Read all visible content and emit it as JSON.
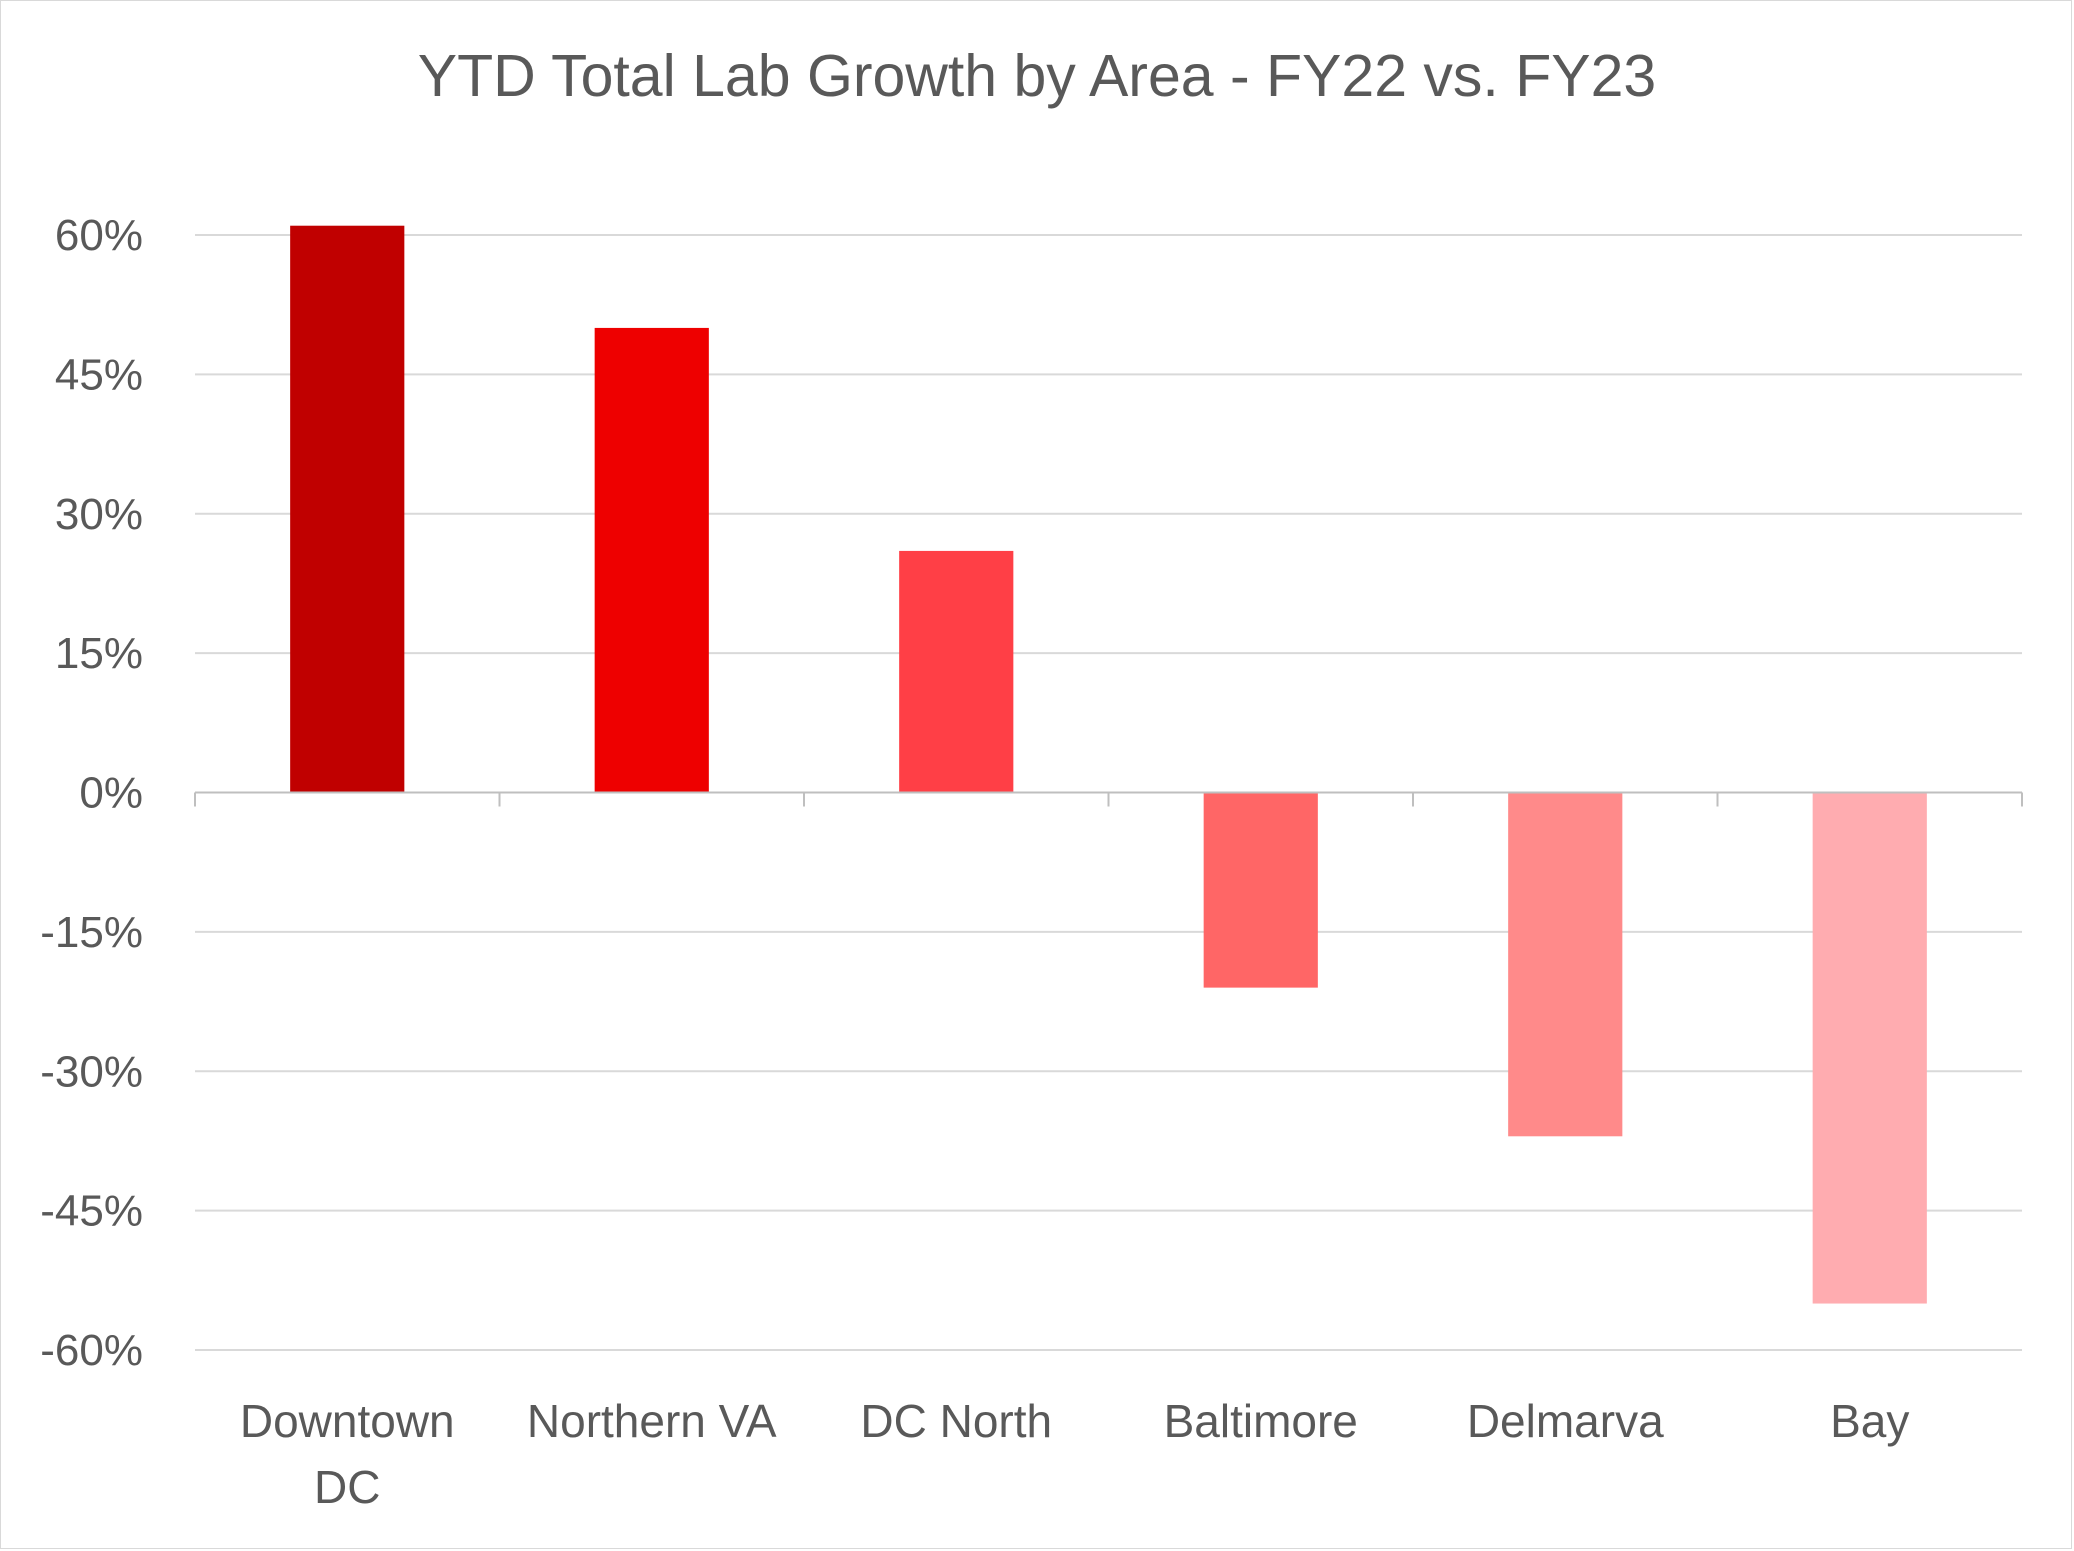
{
  "chart_data": {
    "type": "bar",
    "title": "YTD Total Lab Growth by Area - FY22 vs. FY23",
    "xlabel": "",
    "ylabel": "",
    "categories": [
      [
        "Downtown",
        "DC"
      ],
      [
        "Northern VA"
      ],
      [
        "DC North"
      ],
      [
        "Baltimore"
      ],
      [
        "Delmarva"
      ],
      [
        "Bay"
      ]
    ],
    "values": [
      61,
      50,
      26,
      -21,
      -37,
      -55
    ],
    "value_unit": "%",
    "colors": [
      "#C00000",
      "#EE0000",
      "#FF3F46",
      "#FF6666",
      "#FF8A8A",
      "#FFACB0"
    ],
    "ylim": [
      -60,
      60
    ],
    "yticks": [
      60,
      45,
      30,
      15,
      0,
      -15,
      -30,
      -45,
      -60
    ],
    "ytick_labels": [
      "60%",
      "45%",
      "30%",
      "15%",
      "0%",
      "-15%",
      "-30%",
      "-45%",
      "-60%"
    ],
    "grid": true,
    "legend": "none",
    "gridline_color": "#d9d9d9",
    "axis_color": "#bfbfbf",
    "text_color": "#595959"
  }
}
